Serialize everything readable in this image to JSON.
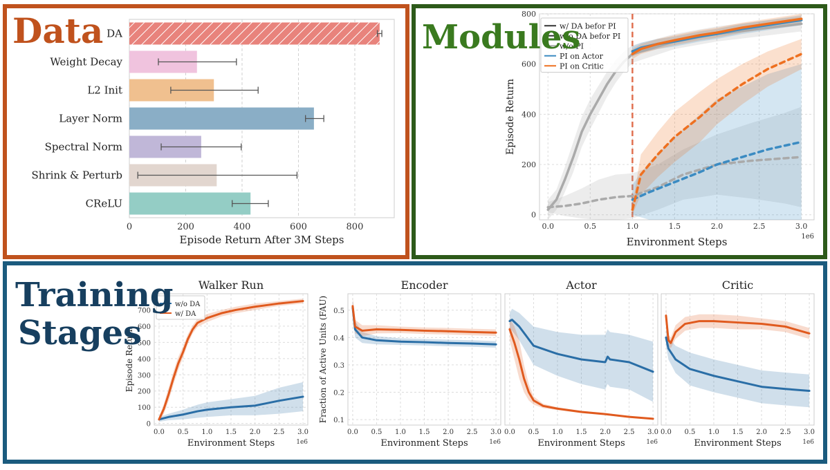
{
  "panels": {
    "data": {
      "heading": "Data",
      "color": "#c0521d"
    },
    "modules": {
      "heading": "Modules",
      "color": "#3a7a1f",
      "border": "#2d5a1a"
    },
    "stages": {
      "heading_line1": "Training",
      "heading_line2": "Stages",
      "color": "#173f5f",
      "border": "#1b5b7e"
    }
  },
  "chart_data": [
    {
      "id": "data_bar",
      "type": "bar",
      "orientation": "horizontal",
      "xlabel": "Episode Return After 3M Steps",
      "xlim": [
        0,
        940
      ],
      "xticks": [
        0,
        200,
        400,
        600,
        800
      ],
      "categories": [
        "DA",
        "Weight Decay",
        "L2 Init",
        "Layer Norm",
        "Spectral Norm",
        "Shrink & Perturb",
        "CReLU"
      ],
      "values": [
        888,
        240,
        300,
        655,
        255,
        310,
        430
      ],
      "errors": [
        [
          880,
          896
        ],
        [
          103,
          380
        ],
        [
          147,
          457
        ],
        [
          625,
          690
        ],
        [
          113,
          397
        ],
        [
          30,
          595
        ],
        [
          365,
          493
        ]
      ],
      "colors": [
        "#e8837c",
        "#f0c3de",
        "#f0c08f",
        "#8aaec6",
        "#c0b7d8",
        "#e2d6cf",
        "#94cdc5"
      ],
      "hatched": [
        true,
        false,
        false,
        false,
        false,
        false,
        false
      ]
    },
    {
      "id": "modules",
      "type": "line",
      "xlabel": "Environment Steps",
      "ylabel": "Episode Return",
      "xlim": [
        -0.1,
        3.15
      ],
      "ylim": [
        -20,
        800
      ],
      "xticks": [
        0.0,
        0.5,
        1.0,
        1.5,
        2.0,
        2.5,
        3.0
      ],
      "yticks": [
        0,
        200,
        400,
        600,
        800
      ],
      "x_multiplier": "1e6",
      "vline_x": 1.0,
      "legend": [
        {
          "label": "w/ DA befor PI",
          "color": "#333333"
        },
        {
          "label": "w/o DA befor PI",
          "color": "#333333"
        },
        {
          "label": "w/o PI",
          "color": "#aaaaaa"
        },
        {
          "label": "PI on Actor",
          "color": "#3b8bc2"
        },
        {
          "label": "PI on Critic",
          "color": "#ee7020"
        }
      ],
      "series": [
        {
          "name": "w/o PI",
          "color": "#aaaaaa",
          "dash": false,
          "x": [
            0,
            0.1,
            0.2,
            0.3,
            0.4,
            0.5,
            0.6,
            0.7,
            0.8,
            0.9,
            1.0,
            1.5,
            2.0,
            2.5,
            3.0
          ],
          "y": [
            20,
            60,
            140,
            230,
            330,
            400,
            460,
            520,
            570,
            610,
            640,
            690,
            720,
            740,
            760
          ],
          "band": [
            40,
            40,
            50,
            60,
            60,
            60,
            55,
            50,
            45,
            40,
            35,
            30,
            30,
            30,
            30
          ]
        },
        {
          "name": "PI on Actor",
          "color": "#3b8bc2",
          "dash": false,
          "x": [
            1.0,
            1.1,
            1.3,
            1.5,
            1.8,
            2.0,
            2.3,
            2.6,
            3.0
          ],
          "y": [
            650,
            665,
            680,
            690,
            710,
            720,
            740,
            755,
            775
          ],
          "band": [
            20,
            20,
            20,
            20,
            20,
            20,
            20,
            20,
            20
          ]
        },
        {
          "name": "PI on Critic",
          "color": "#ee7020",
          "dash": false,
          "x": [
            1.0,
            1.1,
            1.3,
            1.5,
            1.8,
            2.0,
            2.3,
            2.6,
            3.0
          ],
          "y": [
            640,
            660,
            680,
            695,
            715,
            725,
            745,
            760,
            780
          ],
          "band": [
            20,
            20,
            20,
            20,
            20,
            20,
            20,
            20,
            20
          ]
        },
        {
          "name": "w/o PI (w/o DA)",
          "color": "#aaaaaa",
          "dash": true,
          "x": [
            0,
            0.2,
            0.4,
            0.6,
            0.8,
            1.0,
            1.3,
            1.6,
            2.0,
            2.4,
            2.8,
            3.0
          ],
          "y": [
            30,
            35,
            45,
            60,
            70,
            75,
            110,
            160,
            200,
            215,
            225,
            230
          ],
          "band": [
            20,
            40,
            60,
            80,
            90,
            90,
            90,
            100,
            120,
            150,
            180,
            200
          ]
        },
        {
          "name": "PI on Actor (w/o DA)",
          "color": "#3b8bc2",
          "dash": true,
          "x": [
            1.0,
            1.2,
            1.5,
            1.8,
            2.0,
            2.3,
            2.6,
            3.0
          ],
          "y": [
            60,
            90,
            130,
            170,
            200,
            230,
            260,
            290
          ],
          "band": [
            60,
            120,
            180,
            230,
            260,
            280,
            300,
            310
          ]
        },
        {
          "name": "PI on Critic (w/o DA)",
          "color": "#ee7020",
          "dash": true,
          "x": [
            1.0,
            1.1,
            1.3,
            1.5,
            1.8,
            2.0,
            2.3,
            2.6,
            3.0
          ],
          "y": [
            20,
            160,
            240,
            310,
            390,
            450,
            520,
            580,
            640
          ],
          "band": [
            20,
            80,
            90,
            100,
            100,
            90,
            80,
            70,
            60
          ]
        }
      ]
    },
    {
      "id": "walker",
      "type": "line",
      "title": "Walker Run",
      "xlabel": "Environment Steps",
      "ylabel": "Episode Return",
      "xlim": [
        -0.1,
        3.1
      ],
      "ylim": [
        -10,
        800
      ],
      "xticks": [
        0.0,
        0.5,
        1.0,
        1.5,
        2.0,
        2.5,
        3.0
      ],
      "yticks": [
        0,
        100,
        200,
        300,
        400,
        500,
        600,
        700
      ],
      "x_multiplier": "1e6",
      "legend": [
        {
          "label": "w/o DA",
          "color": "#2a6ea6"
        },
        {
          "label": "w/ DA",
          "color": "#e05a1e"
        }
      ],
      "series": [
        {
          "name": "w/o DA",
          "color": "#2a6ea6",
          "x": [
            0,
            0.2,
            0.5,
            0.8,
            1.0,
            1.5,
            2.0,
            2.5,
            3.0
          ],
          "y": [
            25,
            40,
            55,
            75,
            85,
            100,
            110,
            140,
            165
          ],
          "band": [
            15,
            20,
            30,
            40,
            45,
            50,
            60,
            80,
            90
          ]
        },
        {
          "name": "w/ DA",
          "color": "#e05a1e",
          "x": [
            0,
            0.1,
            0.2,
            0.3,
            0.4,
            0.5,
            0.6,
            0.7,
            0.8,
            1.0,
            1.3,
            1.6,
            2.0,
            2.5,
            3.0
          ],
          "y": [
            25,
            90,
            180,
            280,
            370,
            440,
            520,
            580,
            620,
            650,
            680,
            700,
            720,
            740,
            755
          ],
          "band": [
            15,
            30,
            40,
            40,
            40,
            35,
            30,
            25,
            25,
            25,
            20,
            20,
            20,
            15,
            15
          ]
        }
      ]
    },
    {
      "id": "encoder",
      "type": "line",
      "title": "Encoder",
      "xlabel": "Environment Steps",
      "ylabel": "Fraction of Active Units (FAU)",
      "xlim": [
        -0.1,
        3.1
      ],
      "ylim": [
        0.08,
        0.56
      ],
      "xticks": [
        0.0,
        0.5,
        1.0,
        1.5,
        2.0,
        2.5,
        3.0
      ],
      "yticks": [
        0.1,
        0.2,
        0.3,
        0.4,
        0.5
      ],
      "x_multiplier": "1e6",
      "series": [
        {
          "name": "w/o DA",
          "color": "#2a6ea6",
          "x": [
            0,
            0.05,
            0.2,
            0.5,
            1.0,
            1.5,
            2.0,
            2.5,
            3.0
          ],
          "y": [
            0.51,
            0.43,
            0.4,
            0.39,
            0.385,
            0.383,
            0.38,
            0.378,
            0.375
          ],
          "band": [
            0.03,
            0.03,
            0.02,
            0.015,
            0.012,
            0.012,
            0.012,
            0.012,
            0.012
          ]
        },
        {
          "name": "w/ DA",
          "color": "#e05a1e",
          "x": [
            0,
            0.05,
            0.2,
            0.5,
            1.0,
            1.5,
            2.0,
            2.5,
            3.0
          ],
          "y": [
            0.515,
            0.44,
            0.425,
            0.43,
            0.428,
            0.425,
            0.423,
            0.42,
            0.418
          ],
          "band": [
            0.03,
            0.025,
            0.02,
            0.015,
            0.012,
            0.012,
            0.012,
            0.012,
            0.012
          ]
        }
      ]
    },
    {
      "id": "actor",
      "type": "line",
      "title": "Actor",
      "xlabel": "Environment Steps",
      "xlim": [
        -0.1,
        3.1
      ],
      "ylim": [
        0.08,
        0.56
      ],
      "xticks": [
        0.0,
        0.5,
        1.0,
        1.5,
        2.0,
        2.5,
        3.0
      ],
      "x_multiplier": "1e6",
      "series": [
        {
          "name": "w/o DA",
          "color": "#2a6ea6",
          "x": [
            0,
            0.05,
            0.2,
            0.5,
            1.0,
            1.5,
            2.0,
            2.05,
            2.1,
            2.5,
            3.0
          ],
          "y": [
            0.46,
            0.465,
            0.44,
            0.37,
            0.34,
            0.32,
            0.31,
            0.33,
            0.32,
            0.31,
            0.275
          ],
          "band": [
            0.03,
            0.04,
            0.05,
            0.07,
            0.08,
            0.09,
            0.1,
            0.1,
            0.1,
            0.1,
            0.11
          ]
        },
        {
          "name": "w/ DA",
          "color": "#e05a1e",
          "x": [
            0,
            0.1,
            0.2,
            0.3,
            0.4,
            0.5,
            0.7,
            1.0,
            1.5,
            2.0,
            2.5,
            3.0
          ],
          "y": [
            0.43,
            0.38,
            0.32,
            0.25,
            0.2,
            0.17,
            0.15,
            0.14,
            0.128,
            0.12,
            0.11,
            0.103
          ],
          "band": [
            0.04,
            0.06,
            0.07,
            0.05,
            0.03,
            0.015,
            0.008,
            0.005,
            0.004,
            0.004,
            0.003,
            0.003
          ]
        }
      ]
    },
    {
      "id": "critic",
      "type": "line",
      "title": "Critic",
      "xlabel": "Environment Steps",
      "xlim": [
        -0.1,
        3.1
      ],
      "ylim": [
        0.08,
        0.56
      ],
      "xticks": [
        0.0,
        0.5,
        1.0,
        1.5,
        2.0,
        2.5,
        3.0
      ],
      "x_multiplier": "1e6",
      "series": [
        {
          "name": "w/o DA",
          "color": "#2a6ea6",
          "x": [
            0,
            0.05,
            0.2,
            0.5,
            1.0,
            1.5,
            2.0,
            2.5,
            3.0
          ],
          "y": [
            0.4,
            0.36,
            0.32,
            0.285,
            0.26,
            0.24,
            0.22,
            0.212,
            0.205
          ],
          "band": [
            0.03,
            0.04,
            0.05,
            0.06,
            0.06,
            0.06,
            0.06,
            0.06,
            0.06
          ]
        },
        {
          "name": "w/ DA",
          "color": "#e05a1e",
          "x": [
            0,
            0.05,
            0.1,
            0.2,
            0.4,
            0.7,
            1.0,
            1.5,
            2.0,
            2.5,
            3.0
          ],
          "y": [
            0.48,
            0.39,
            0.38,
            0.42,
            0.45,
            0.46,
            0.46,
            0.455,
            0.45,
            0.44,
            0.415
          ],
          "band": [
            0.03,
            0.02,
            0.02,
            0.025,
            0.025,
            0.025,
            0.025,
            0.025,
            0.02,
            0.02,
            0.02
          ]
        }
      ]
    }
  ]
}
